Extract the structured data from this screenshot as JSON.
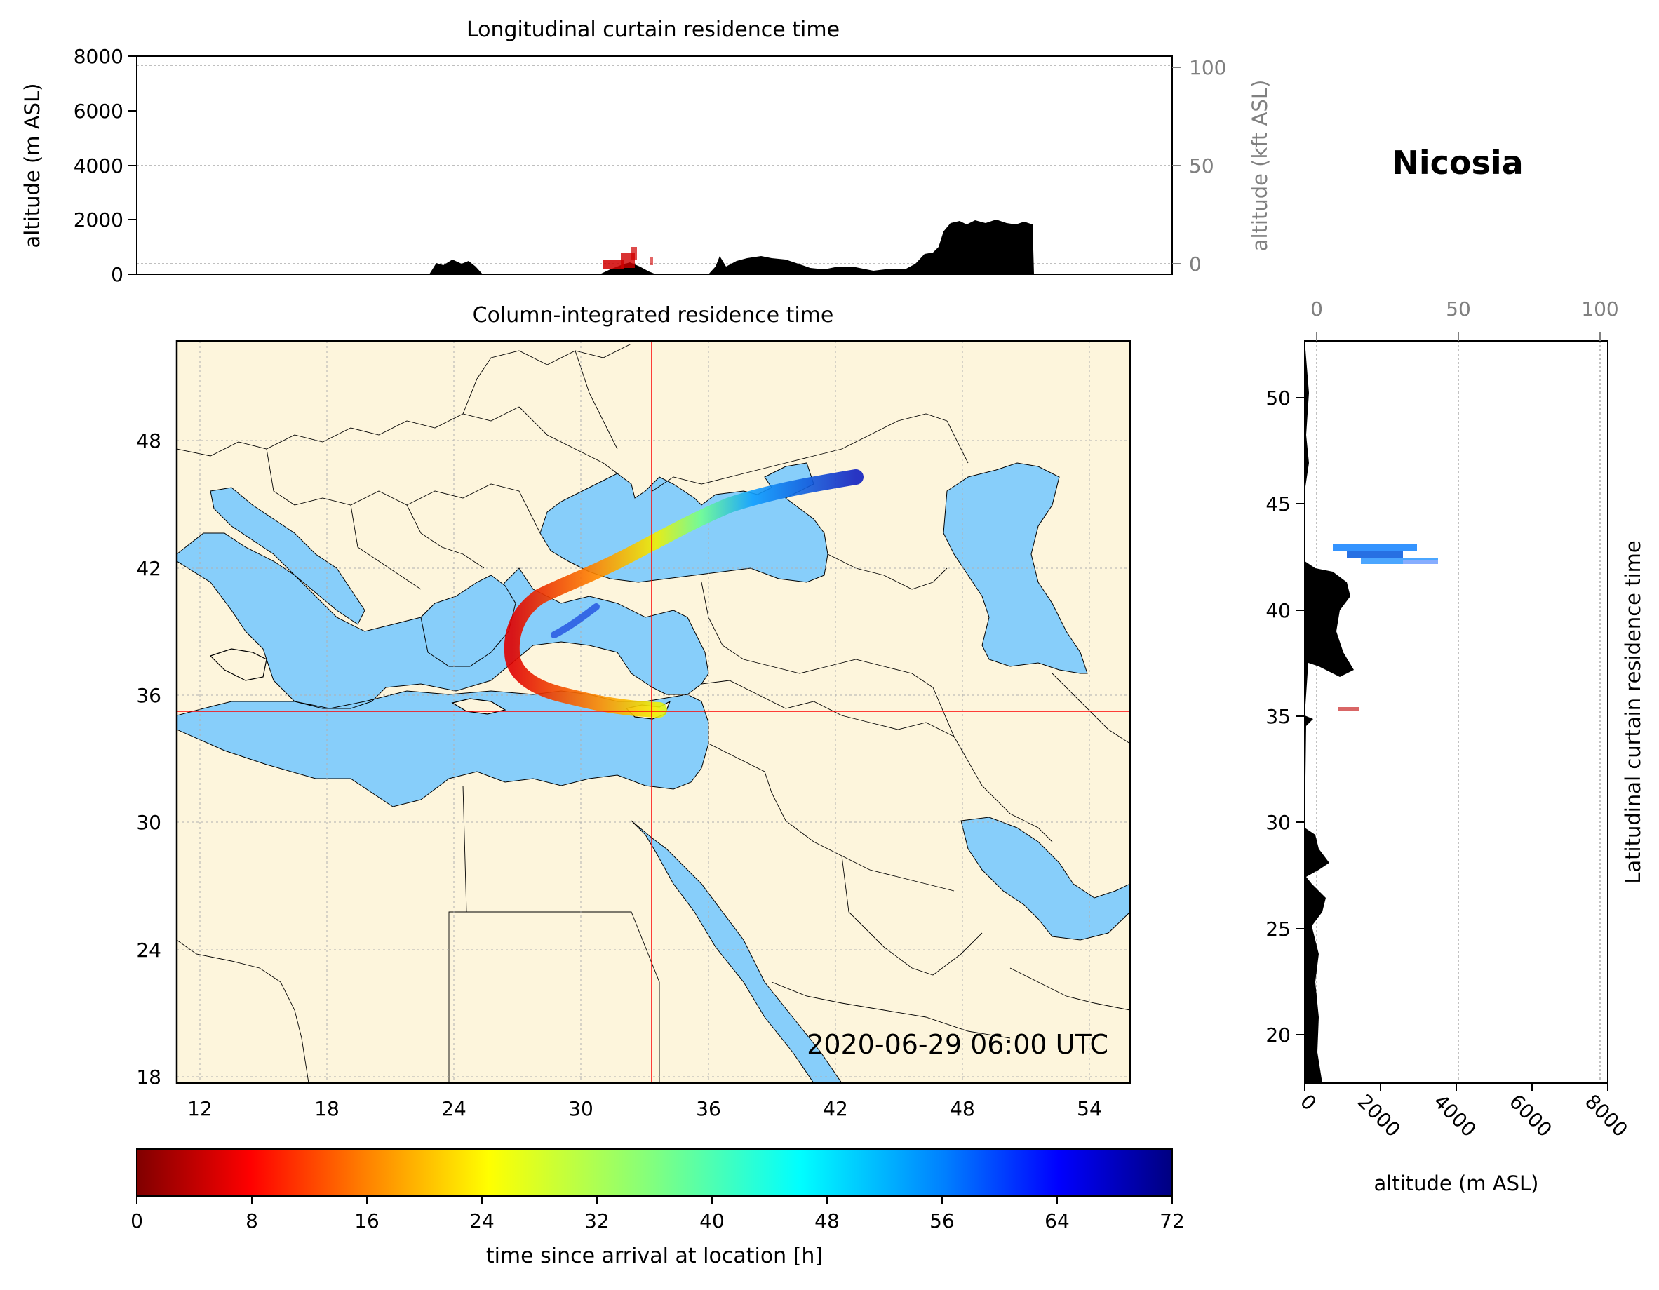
{
  "location_title": "Nicosia",
  "timestamp": "2020-06-29 06:00 UTC",
  "top_panel": {
    "title": "Longitudinal curtain residence time",
    "ylabel_left": "altitude (m ASL)",
    "ylabel_right": "altitude (kft ASL)",
    "left_ticks": [
      "0",
      "2000",
      "4000",
      "6000",
      "8000"
    ],
    "right_ticks": [
      "0",
      "50",
      "100"
    ]
  },
  "map_panel": {
    "title": "Column-integrated residence time",
    "lon_ticks": [
      "12",
      "18",
      "24",
      "30",
      "36",
      "42",
      "48",
      "54"
    ],
    "lat_ticks": [
      "18",
      "24",
      "30",
      "36",
      "42",
      "48"
    ],
    "crosshair": {
      "lon": 33.4,
      "lat": 35.2
    },
    "colors": {
      "land": "#fdf5dc",
      "water": "#87cefa",
      "crosshair": "#ff0000"
    }
  },
  "right_panel": {
    "ylabel": "Latitudinal curtain residence time",
    "xlabel": "altitude (m ASL)",
    "lat_ticks": [
      "20",
      "25",
      "30",
      "35",
      "40",
      "45",
      "50"
    ],
    "bottom_ticks": [
      "0",
      "2000",
      "4000",
      "6000",
      "8000"
    ],
    "top_ticks": [
      "0",
      "50",
      "100"
    ]
  },
  "colorbar": {
    "label": "time since arrival at location [h]",
    "ticks": [
      "0",
      "8",
      "16",
      "24",
      "32",
      "40",
      "48",
      "56",
      "64",
      "72"
    ],
    "colormap": "jet_reversed"
  }
}
